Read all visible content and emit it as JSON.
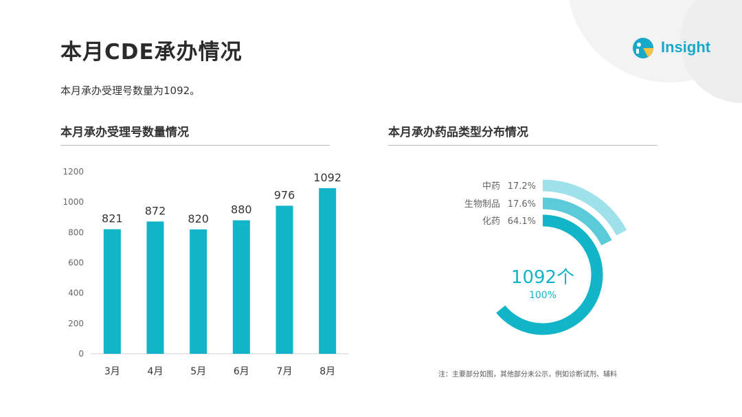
{
  "page": {
    "title": "本月CDE承办情况",
    "summary": "本月承办受理号数量为1092。",
    "logo_text": "Insight"
  },
  "left_section": {
    "title": "本月承办受理号数量情况"
  },
  "right_section": {
    "title": "本月承办药品类型分布情况",
    "center_value": "1092个",
    "center_percent": "100%",
    "note": "注：主要部分如图，其他部分未公示，例如诊断试剂、辅料"
  },
  "colors": {
    "primary": "#12b4c8",
    "medium": "#5bcbd9",
    "light": "#9fe1ea",
    "title": "#2a2a2a",
    "logo": "#18a9c9"
  },
  "chart_data": [
    {
      "type": "bar",
      "title": "本月承办受理号数量情况",
      "categories": [
        "3月",
        "4月",
        "5月",
        "6月",
        "7月",
        "8月"
      ],
      "values": [
        821,
        872,
        820,
        880,
        976,
        1092
      ],
      "yticks": [
        "0",
        "200",
        "400",
        "600",
        "800",
        "1000",
        "1200"
      ],
      "ylim": [
        0,
        1200
      ],
      "xlabel": "",
      "ylabel": "",
      "grid": false
    },
    {
      "type": "pie",
      "title": "本月承办药品类型分布情况",
      "categories": [
        "中药",
        "生物制品",
        "化药"
      ],
      "labels": [
        "17.2%",
        "17.6%",
        "64.1%"
      ],
      "values": [
        17.2,
        17.6,
        64.1
      ],
      "colors": [
        "#9fe1ea",
        "#5bcbd9",
        "#12b4c8"
      ]
    }
  ]
}
